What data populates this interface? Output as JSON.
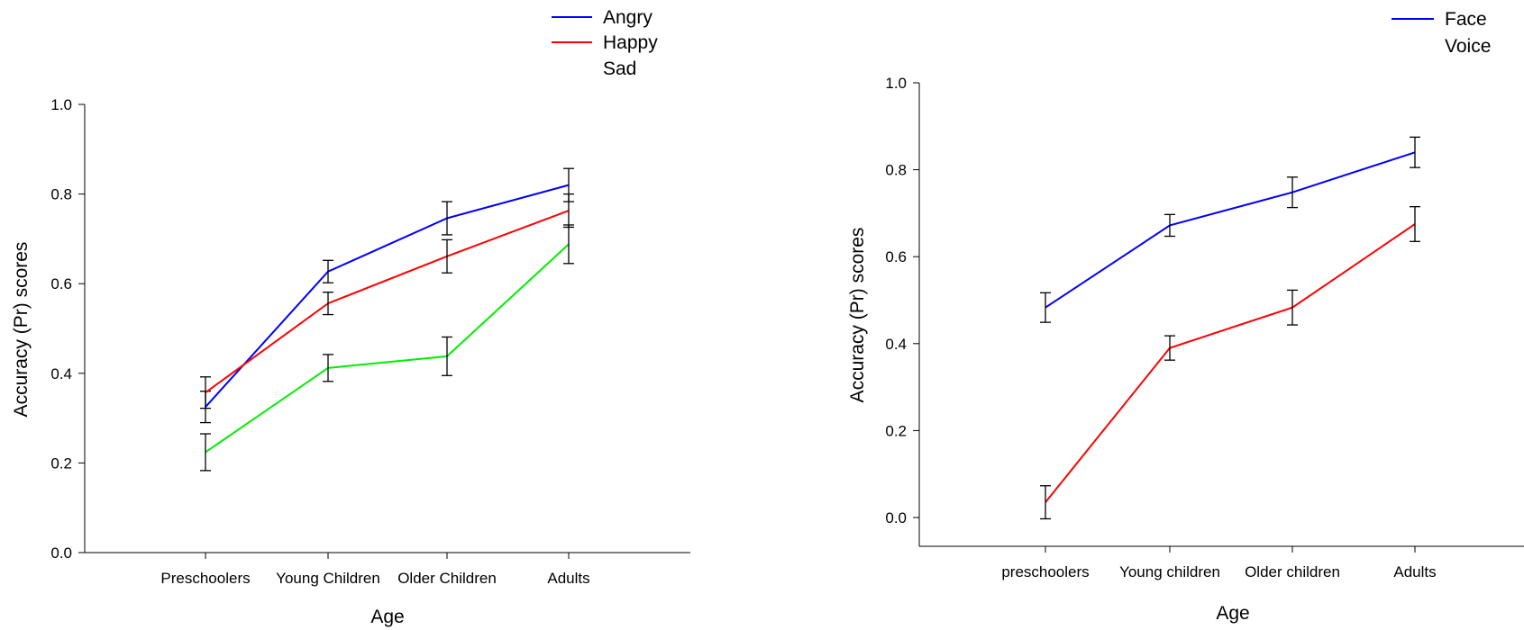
{
  "colors": {
    "angry": "#0000ff",
    "happy": "#ff0000",
    "sad": "#00ee00",
    "face": "#0000ff",
    "voice": "#ff0000",
    "error_bar": "#000000",
    "axis": "#000000"
  },
  "chart_data": [
    {
      "type": "line",
      "title": "",
      "xlabel": "Age",
      "ylabel": "Accuracy (Pr) scores",
      "categories": [
        "Preschoolers",
        "Young Children",
        "Older Children",
        "Adults"
      ],
      "ylim": [
        0,
        1.0
      ],
      "yticks": [
        "0.0",
        "0.2",
        "0.4",
        "0.6",
        "0.8",
        "1.0"
      ],
      "grid": false,
      "legend_position": "top-right",
      "series": [
        {
          "name": "Angry",
          "color": "#0000ff",
          "values": [
            0.325,
            0.627,
            0.746,
            0.82
          ],
          "errors": [
            0.035,
            0.025,
            0.037,
            0.037
          ]
        },
        {
          "name": "Happy",
          "color": "#ff0000",
          "values": [
            0.357,
            0.556,
            0.661,
            0.763
          ],
          "errors": [
            0.035,
            0.025,
            0.037,
            0.037
          ]
        },
        {
          "name": "Sad",
          "color": "#00ee00",
          "values": [
            0.224,
            0.412,
            0.438,
            0.688
          ],
          "errors": [
            0.041,
            0.03,
            0.043,
            0.043
          ]
        }
      ]
    },
    {
      "type": "line",
      "title": "",
      "xlabel": "Age",
      "ylabel": "Accuracy (Pr) scores",
      "categories": [
        "preschoolers",
        "Young children",
        "Older children",
        "Adults"
      ],
      "ylim": [
        -0.07,
        1.0
      ],
      "yticks": [
        "0.0",
        "0.2",
        "0.4",
        "0.6",
        "0.8",
        "1.0"
      ],
      "grid": false,
      "legend_position": "top-right",
      "series": [
        {
          "name": "Face",
          "color": "#0000ff",
          "values": [
            0.483,
            0.672,
            0.748,
            0.84
          ],
          "errors": [
            0.034,
            0.025,
            0.035,
            0.035
          ]
        },
        {
          "name": "Voice",
          "color": "#ff0000",
          "values": [
            0.035,
            0.39,
            0.483,
            0.675
          ],
          "errors": [
            0.038,
            0.028,
            0.04,
            0.04
          ]
        }
      ]
    }
  ]
}
